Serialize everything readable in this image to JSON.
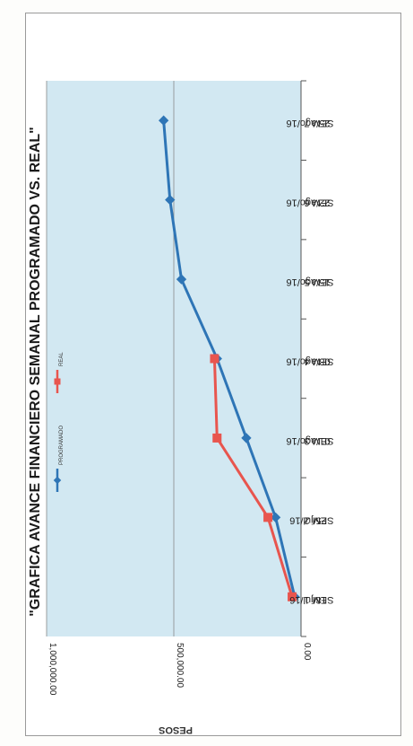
{
  "chart_data": {
    "type": "line",
    "orientation": "rotated-90-clockwise",
    "title": "\"GRAFICA AVANCE FINANCIERO  SEMANAL PROGRAMADO VS. REAL\"",
    "ylabel": "PESOS",
    "xlabel": "",
    "ylim": [
      0,
      1000000
    ],
    "yticks": [
      0,
      500000,
      1000000
    ],
    "ytick_labels": [
      "0.00",
      "500,000.00",
      "1,000,000.00"
    ],
    "grid": "horizontal",
    "legend_position": "top-right",
    "categories": [
      [
        "SEM 1",
        "18/jul/16"
      ],
      [
        "SEM 2",
        "25/jul/16"
      ],
      [
        "SEM 3",
        "01/ago/16"
      ],
      [
        "SEM 4",
        "08/ago/16"
      ],
      [
        "SEM 5",
        "15/ago/16"
      ],
      [
        "SEM 6",
        "22/ago/16"
      ],
      [
        "SEM 7",
        "25/ago/16"
      ]
    ],
    "series": [
      {
        "name": "PROGRAMADO",
        "color": "#2e75b6",
        "marker": "diamond",
        "values": [
          25000,
          100000,
          215000,
          330000,
          470000,
          515000,
          540000
        ]
      },
      {
        "name": "REAL",
        "color": "#e8554e",
        "marker": "square",
        "values": [
          35000,
          130000,
          330000,
          340000,
          null,
          null,
          null
        ]
      }
    ]
  }
}
